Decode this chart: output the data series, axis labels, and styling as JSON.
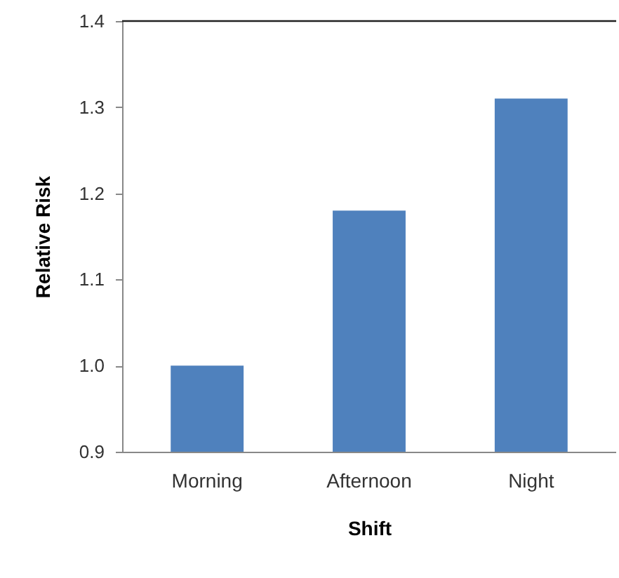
{
  "chart_data": {
    "type": "bar",
    "xlabel": "Shift",
    "ylabel": "Relative Risk",
    "categories": [
      "Morning",
      "Afternoon",
      "Night"
    ],
    "values": [
      1.0,
      1.18,
      1.31
    ],
    "color": "#4f81bd",
    "ylim": [
      0.9,
      1.4
    ],
    "yticks": [
      {
        "value": 0.9,
        "label": "0.9"
      },
      {
        "value": 1.0,
        "label": "1.0"
      },
      {
        "value": 1.1,
        "label": "1.1"
      },
      {
        "value": 1.2,
        "label": "1.2"
      },
      {
        "value": 1.3,
        "label": "1.3"
      },
      {
        "value": 1.4,
        "label": "1.4"
      }
    ]
  }
}
